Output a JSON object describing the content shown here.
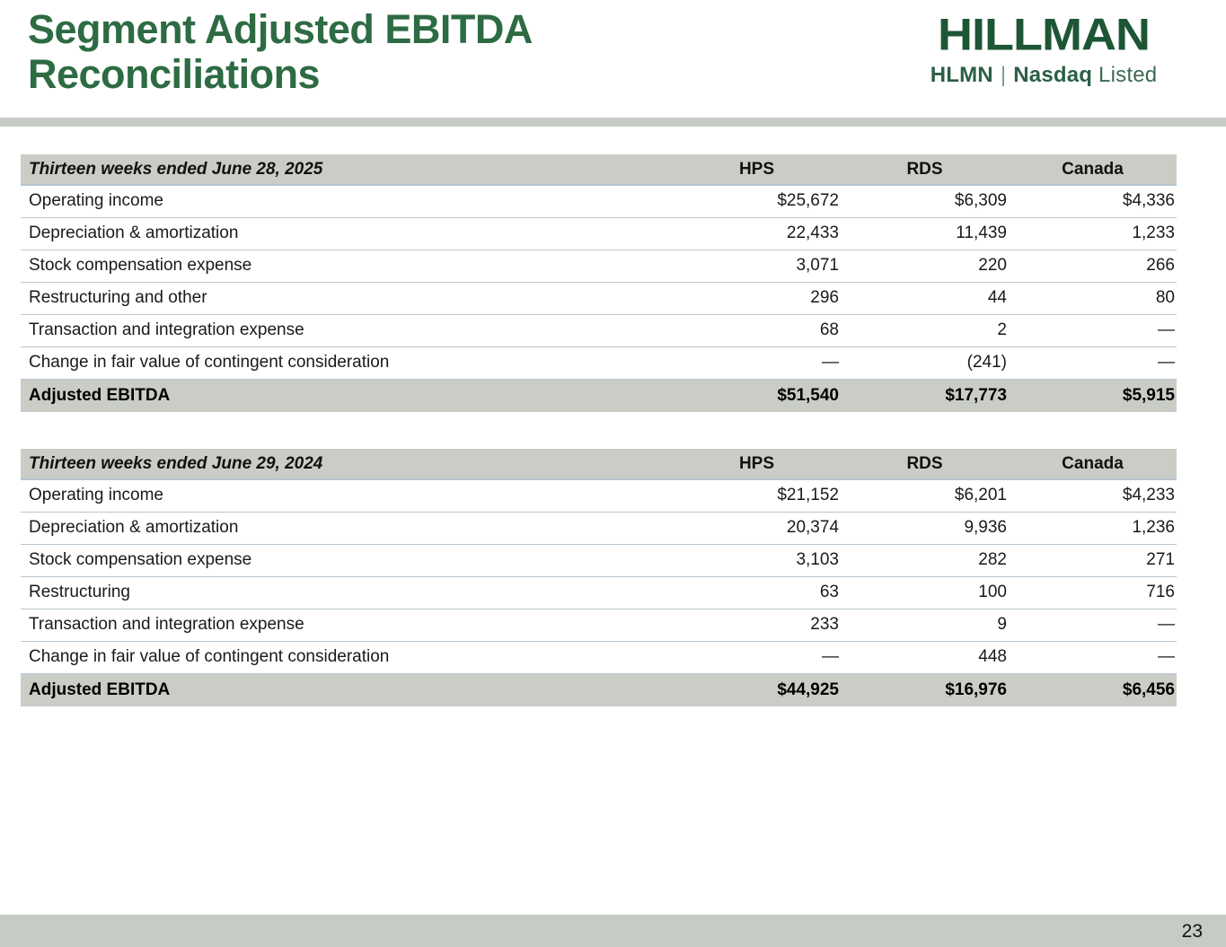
{
  "slide": {
    "title_line1": "Segment Adjusted EBITDA",
    "title_line2": "Reconciliations",
    "page_number": "23"
  },
  "logo": {
    "brand": "HILLMAN",
    "ticker": "HLMN",
    "pipe": "|",
    "exchange": "Nasdaq",
    "listed": "Listed"
  },
  "colors": {
    "title_green": "#2d6b43",
    "logo_green": "#1d5634",
    "band_gray": "#c6ccc4",
    "row_highlight_gray": "#c9cdc6",
    "row_divider_blue_gray": "#b9c7d1"
  },
  "tables": [
    {
      "period_label": "Thirteen weeks ended June 28, 2025",
      "columns": [
        "HPS",
        "RDS",
        "Canada"
      ],
      "rows": [
        {
          "label": "Operating income",
          "values": [
            "$25,672",
            "$6,309",
            "$4,336"
          ]
        },
        {
          "label": "Depreciation & amortization",
          "values": [
            "22,433",
            "11,439",
            "1,233"
          ]
        },
        {
          "label": "Stock compensation expense",
          "values": [
            "3,071",
            "220",
            "266"
          ]
        },
        {
          "label": "Restructuring and other",
          "values": [
            "296",
            "44",
            "80"
          ]
        },
        {
          "label": "Transaction and integration expense",
          "values": [
            "68",
            "2",
            "—"
          ]
        },
        {
          "label": "Change in fair value of contingent consideration",
          "values": [
            "—",
            "(241)",
            "—"
          ]
        }
      ],
      "total_row": {
        "label": "Adjusted EBITDA",
        "values": [
          "$51,540",
          "$17,773",
          "$5,915"
        ]
      }
    },
    {
      "period_label": "Thirteen weeks ended June 29, 2024",
      "columns": [
        "HPS",
        "RDS",
        "Canada"
      ],
      "rows": [
        {
          "label": "Operating income",
          "values": [
            "$21,152",
            "$6,201",
            "$4,233"
          ]
        },
        {
          "label": "Depreciation & amortization",
          "values": [
            "20,374",
            "9,936",
            "1,236"
          ]
        },
        {
          "label": "Stock compensation expense",
          "values": [
            "3,103",
            "282",
            "271"
          ]
        },
        {
          "label": "Restructuring",
          "values": [
            "63",
            "100",
            "716"
          ]
        },
        {
          "label": "Transaction and integration expense",
          "values": [
            "233",
            "9",
            "—"
          ]
        },
        {
          "label": "Change in fair value of contingent consideration",
          "values": [
            "—",
            "448",
            "—"
          ]
        }
      ],
      "total_row": {
        "label": "Adjusted EBITDA",
        "values": [
          "$44,925",
          "$16,976",
          "$6,456"
        ]
      }
    }
  ]
}
